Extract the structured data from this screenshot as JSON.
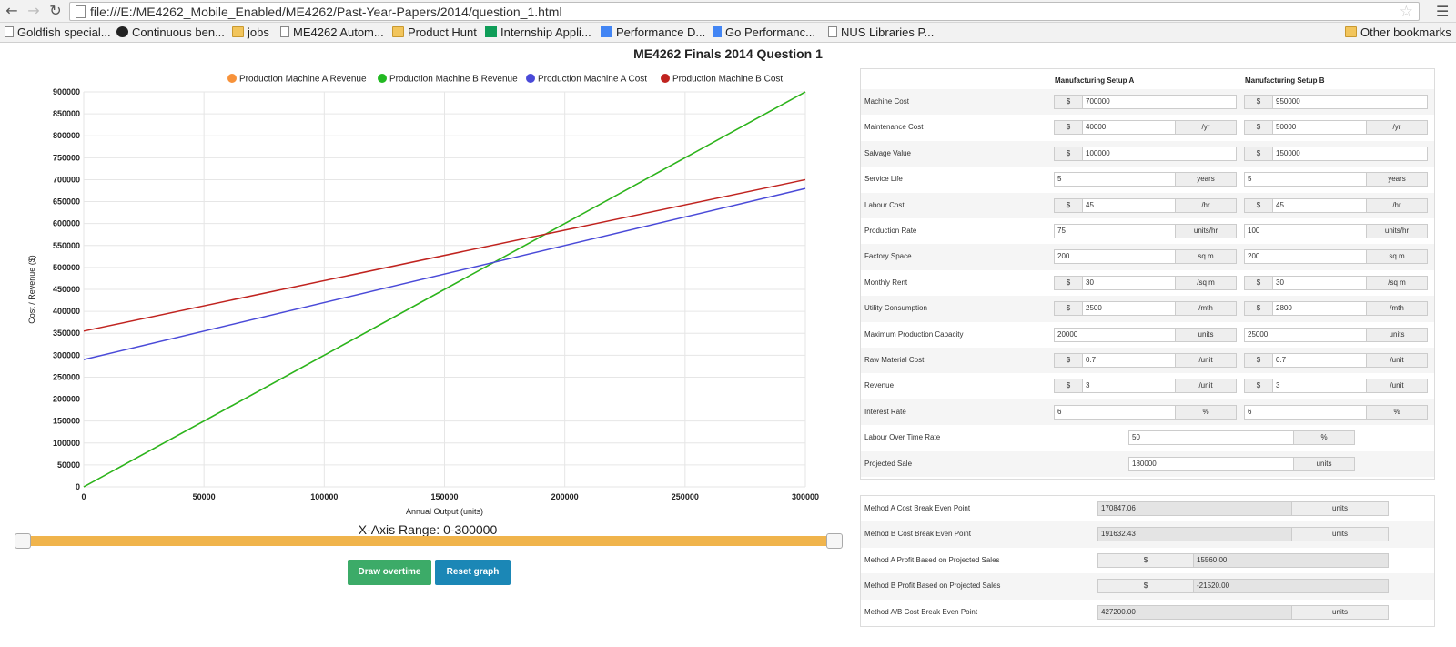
{
  "browser": {
    "url": "file:///E:/ME4262_Mobile_Enabled/ME4262/Past-Year-Papers/2014/question_1.html",
    "bookmarks": [
      {
        "label": "Goldfish special...",
        "icon": "page"
      },
      {
        "label": "Continuous ben...",
        "icon": "gh"
      },
      {
        "label": "jobs",
        "icon": "folder"
      },
      {
        "label": "ME4262 Autom...",
        "icon": "page"
      },
      {
        "label": "Product Hunt",
        "icon": "folder"
      },
      {
        "label": "Internship Appli...",
        "icon": "sheet"
      },
      {
        "label": "Performance D...",
        "icon": "chat"
      },
      {
        "label": "Go Performanc...",
        "icon": "doc"
      },
      {
        "label": "NUS Libraries P...",
        "icon": "page"
      }
    ],
    "other_bookmarks": "Other bookmarks"
  },
  "page": {
    "title": "ME4262 Finals 2014 Question 1",
    "slider_label": "X-Axis Range: 0-300000",
    "slider_range": [
      0,
      300000
    ],
    "buttons": {
      "draw": "Draw overtime",
      "reset": "Reset graph"
    },
    "colors": {
      "draw": "#3cab68",
      "reset": "#1b87b6",
      "slider": "#f0b44c"
    }
  },
  "chart_data": {
    "type": "line",
    "title": "",
    "xlabel": "Annual Output (units)",
    "ylabel": "Cost / Revenue ($)",
    "xlim": [
      0,
      300000
    ],
    "ylim": [
      0,
      900000
    ],
    "x_ticks": [
      "0",
      "50000",
      "100000",
      "150000",
      "200000",
      "250000",
      "300000"
    ],
    "y_ticks": [
      "0",
      "50000",
      "100000",
      "150000",
      "200000",
      "250000",
      "300000",
      "350000",
      "400000",
      "450000",
      "500000",
      "550000",
      "600000",
      "650000",
      "700000",
      "750000",
      "800000",
      "850000",
      "900000"
    ],
    "grid": true,
    "legend": "top",
    "series": [
      {
        "name": "Production Machine A Revenue",
        "color": "#f7923a",
        "x": [
          0,
          300000
        ],
        "y": [
          0,
          900000
        ]
      },
      {
        "name": "Production Machine B Revenue",
        "color": "#22b922",
        "x": [
          0,
          300000
        ],
        "y": [
          0,
          900000
        ]
      },
      {
        "name": "Production Machine A Cost",
        "color": "#4a4ad8",
        "x": [
          0,
          300000
        ],
        "y": [
          290000,
          680000
        ]
      },
      {
        "name": "Production Machine B Cost",
        "color": "#c0231f",
        "x": [
          0,
          300000
        ],
        "y": [
          355000,
          700000
        ]
      }
    ]
  },
  "setup": {
    "col_a": "Manufacturing Setup A",
    "col_b": "Manufacturing Setup B",
    "rows": [
      {
        "label": "Machine Cost",
        "pre": "$",
        "a": "700000",
        "b": "950000",
        "post": ""
      },
      {
        "label": "Maintenance Cost",
        "pre": "$",
        "a": "40000",
        "b": "50000",
        "post": "/yr"
      },
      {
        "label": "Salvage Value",
        "pre": "$",
        "a": "100000",
        "b": "150000",
        "post": ""
      },
      {
        "label": "Service Life",
        "pre": "",
        "a": "5",
        "b": "5",
        "post": "years"
      },
      {
        "label": "Labour Cost",
        "pre": "$",
        "a": "45",
        "b": "45",
        "post": "/hr"
      },
      {
        "label": "Production Rate",
        "pre": "",
        "a": "75",
        "b": "100",
        "post": "units/hr"
      },
      {
        "label": "Factory Space",
        "pre": "",
        "a": "200",
        "b": "200",
        "post": "sq m"
      },
      {
        "label": "Monthly Rent",
        "pre": "$",
        "a": "30",
        "b": "30",
        "post": "/sq m"
      },
      {
        "label": "Utility Consumption",
        "pre": "$",
        "a": "2500",
        "b": "2800",
        "post": "/mth"
      },
      {
        "label": "Maximum Production Capacity",
        "pre": "",
        "a": "20000",
        "b": "25000",
        "post": "units"
      },
      {
        "label": "Raw Material Cost",
        "pre": "$",
        "a": "0.7",
        "b": "0.7",
        "post": "/unit"
      },
      {
        "label": "Revenue",
        "pre": "$",
        "a": "3",
        "b": "3",
        "post": "/unit"
      },
      {
        "label": "Interest Rate",
        "pre": "",
        "a": "6",
        "b": "6",
        "post": "%"
      }
    ],
    "single_rows": [
      {
        "label": "Labour Over Time Rate",
        "value": "50",
        "post": "%"
      },
      {
        "label": "Projected Sale",
        "value": "180000",
        "post": "units"
      }
    ]
  },
  "results": [
    {
      "label": "Method A Cost Break Even Point",
      "pre": "",
      "value": "170847.06",
      "post": "units"
    },
    {
      "label": "Method B Cost Break Even Point",
      "pre": "",
      "value": "191632.43",
      "post": "units"
    },
    {
      "label": "Method A Profit Based on Projected Sales",
      "pre": "$",
      "value": "15560.00",
      "post": ""
    },
    {
      "label": "Method B Profit Based on Projected Sales",
      "pre": "$",
      "value": "-21520.00",
      "post": ""
    },
    {
      "label": "Method A/B Cost Break Even Point",
      "pre": "",
      "value": "427200.00",
      "post": "units"
    }
  ]
}
